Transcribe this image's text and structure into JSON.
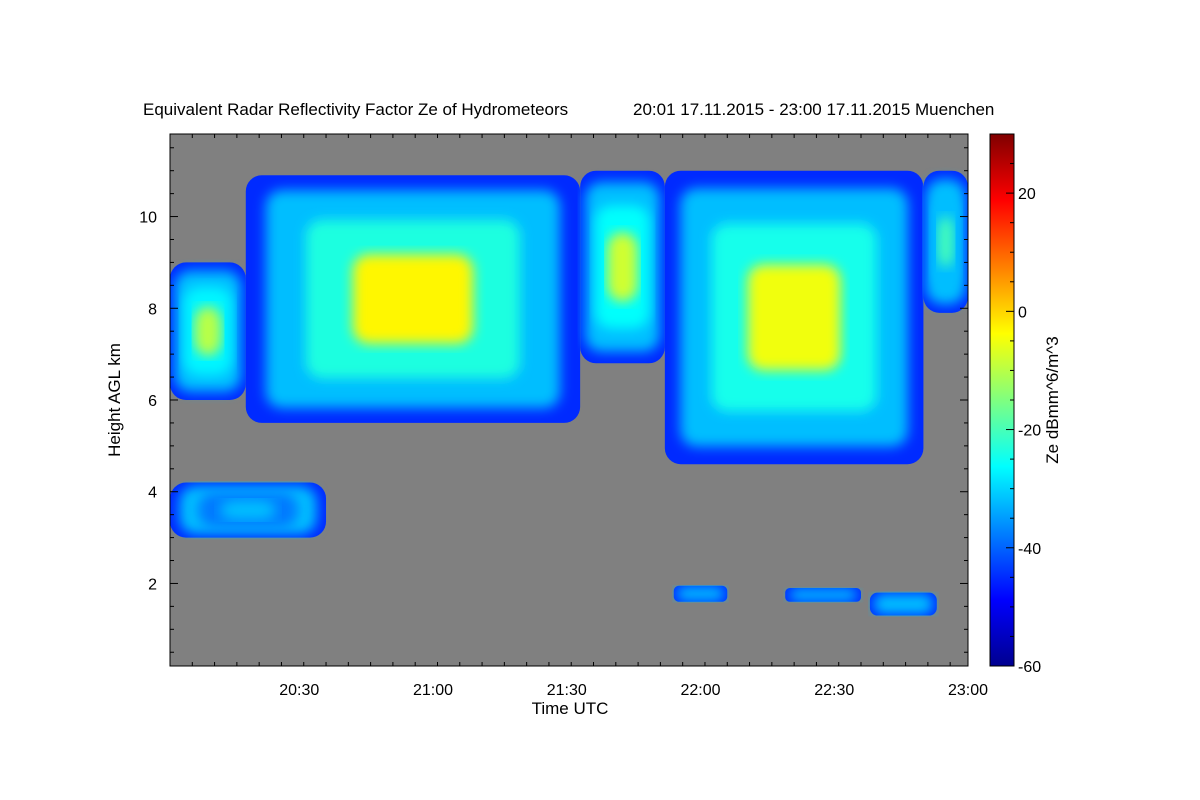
{
  "chart_data": {
    "type": "heatmap",
    "title": "Equivalent Radar Reflectivity Factor Ze of Hydrometeors",
    "subtitle": "20:01 17.11.2015 - 23:00 17.11.2015 Muenchen",
    "xlabel": "Time UTC",
    "ylabel": "Height AGL km",
    "xlim": [
      "20:01",
      "23:00"
    ],
    "ylim": [
      0.2,
      11.8
    ],
    "x_ticks": [
      "20:30",
      "21:00",
      "21:30",
      "22:00",
      "22:30",
      "23:00"
    ],
    "y_ticks": [
      2,
      4,
      6,
      8,
      10
    ],
    "colorbar": {
      "label": "Ze dBmm^6/m^3",
      "range": [
        -60,
        30
      ],
      "ticks": [
        -60,
        -40,
        -20,
        0,
        20
      ],
      "colormap": "jet"
    },
    "background_color": "#808080",
    "echo_layers": [
      {
        "time_start": "20:01",
        "time_end": "20:18",
        "base_km": 6.0,
        "top_km": 9.0,
        "peak_dBZ": -10
      },
      {
        "time_start": "20:18",
        "time_end": "21:33",
        "base_km": 5.5,
        "top_km": 10.9,
        "peak_dBZ": -3
      },
      {
        "time_start": "21:33",
        "time_end": "21:52",
        "base_km": 6.8,
        "top_km": 11.0,
        "peak_dBZ": -8
      },
      {
        "time_start": "21:52",
        "time_end": "22:50",
        "base_km": 4.6,
        "top_km": 11.0,
        "peak_dBZ": -5
      },
      {
        "time_start": "22:50",
        "time_end": "23:00",
        "base_km": 7.9,
        "top_km": 11.0,
        "peak_dBZ": -20
      },
      {
        "time_start": "20:01",
        "time_end": "20:36",
        "base_km": 3.0,
        "top_km": 4.2,
        "peak_dBZ": -32
      },
      {
        "time_start": "21:54",
        "time_end": "22:06",
        "base_km": 1.6,
        "top_km": 1.95,
        "peak_dBZ": -32
      },
      {
        "time_start": "22:19",
        "time_end": "22:36",
        "base_km": 1.6,
        "top_km": 1.9,
        "peak_dBZ": -32
      },
      {
        "time_start": "22:38",
        "time_end": "22:53",
        "base_km": 1.3,
        "top_km": 1.8,
        "peak_dBZ": -32
      }
    ]
  }
}
